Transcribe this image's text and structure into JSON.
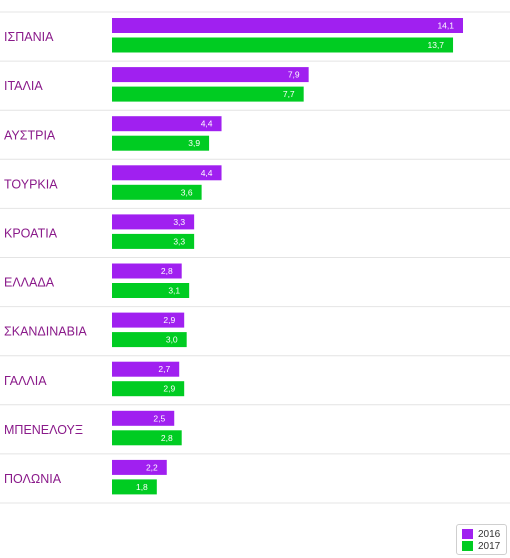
{
  "chart_data": {
    "type": "bar",
    "orientation": "horizontal",
    "categories": [
      "ΙΣΠΑΝΙΑ",
      "ΙΤΑΛΙΑ",
      "ΑΥΣΤΡΙΑ",
      "ΤΟΥΡΚΙΑ",
      "ΚΡΟΑΤΙΑ",
      "ΕΛΛΑΔΑ",
      "ΣΚΑΝΔΙΝΑΒΙΑ",
      "ΓΑΛΛΙΑ",
      "ΜΠΕΝΕΛΟΥΞ",
      "ΠΟΛΩΝΙΑ"
    ],
    "series": [
      {
        "name": "2016",
        "color": "#a020f0",
        "values": [
          14.1,
          7.9,
          4.4,
          4.4,
          3.3,
          2.8,
          2.9,
          2.7,
          2.5,
          2.2
        ],
        "labels": [
          "14,1",
          "7,9",
          "4,4",
          "4,4",
          "3,3",
          "2,8",
          "2,9",
          "2,7",
          "2,5",
          "2,2"
        ]
      },
      {
        "name": "2017",
        "color": "#00cc22",
        "values": [
          13.7,
          7.7,
          3.9,
          3.6,
          3.3,
          3.1,
          3.0,
          2.9,
          2.8,
          1.8
        ],
        "labels": [
          "13,7",
          "7,7",
          "3,9",
          "3,6",
          "3,3",
          "3,1",
          "3,0",
          "2,9",
          "2,8",
          "1,8"
        ]
      }
    ],
    "xlim": [
      0,
      14.1
    ],
    "grid": false,
    "legend_position": "bottom-right"
  }
}
